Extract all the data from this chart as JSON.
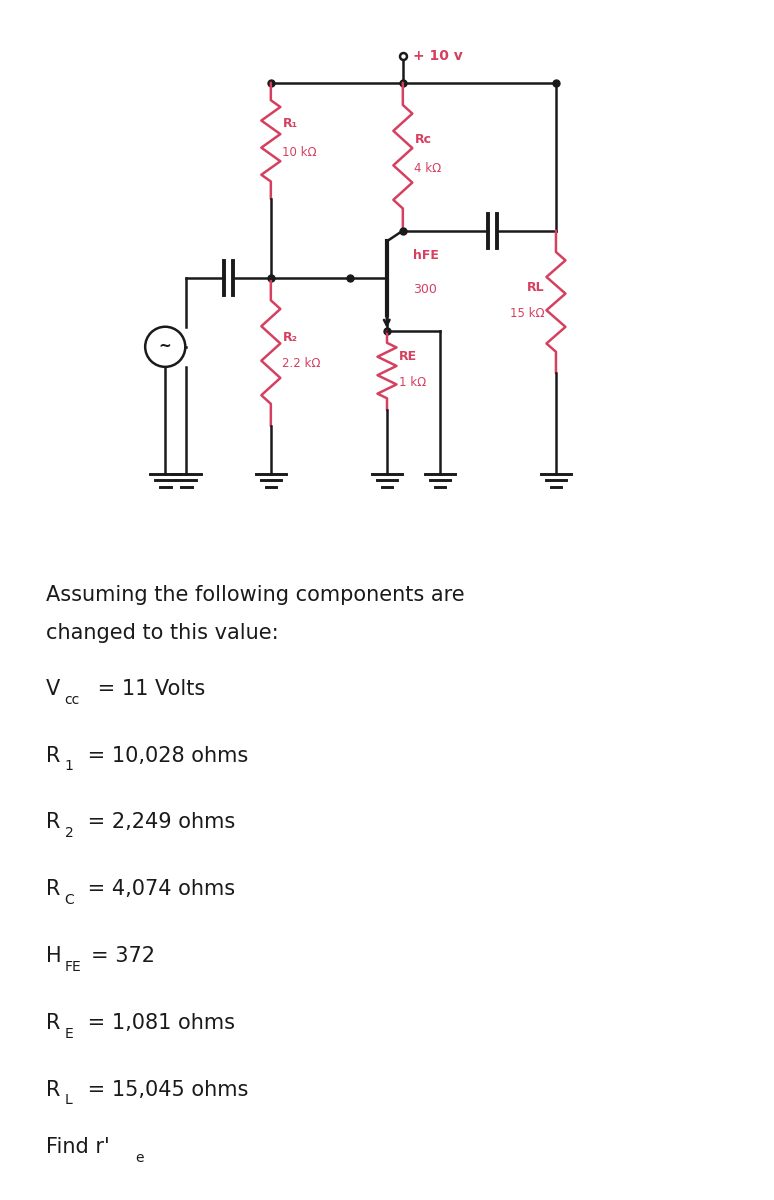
{
  "white_bg": "#ffffff",
  "circuit_bg": "#f5dfc0",
  "pink": "#d64060",
  "black": "#1a1a1a",
  "intro": "Assuming the following components are\nchanged to this value:",
  "entries": [
    [
      "V",
      "cc",
      " = 11 Volts"
    ],
    [
      "R",
      "1",
      " = 10,028 ohms"
    ],
    [
      "R",
      "2",
      " = 2,249 ohms"
    ],
    [
      "R",
      "C",
      " = 4,074 ohms"
    ],
    [
      "H",
      "FE",
      "= 372"
    ],
    [
      "R",
      "E",
      " = 1,081 ohms"
    ],
    [
      "R",
      "L",
      " = 15,045 ohms"
    ]
  ],
  "find_text": "Find r'e"
}
